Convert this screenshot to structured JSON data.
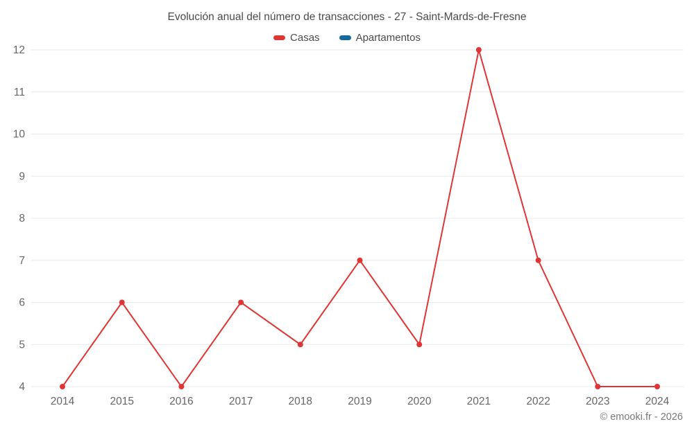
{
  "chart_data": {
    "type": "line",
    "title": "Evolución anual del número de transacciones - 27 - Saint-Mards-de-Fresne",
    "categories": [
      "2014",
      "2015",
      "2016",
      "2017",
      "2018",
      "2019",
      "2020",
      "2021",
      "2022",
      "2023",
      "2024"
    ],
    "series": [
      {
        "name": "Casas",
        "color": "#e03535",
        "values": [
          4,
          6,
          4,
          6,
          5,
          7,
          5,
          12,
          7,
          4,
          4
        ]
      },
      {
        "name": "Apartamentos",
        "color": "#15699c",
        "values": []
      }
    ],
    "ylim": [
      4,
      12
    ],
    "yticks": [
      4,
      5,
      6,
      7,
      8,
      9,
      10,
      11,
      12
    ],
    "grid": "horizontal",
    "gridline_color": "#e8e8e8",
    "tick_label_color": "#666666",
    "legend_position": "top"
  },
  "footer": {
    "copyright": "© emooki.fr - 2026"
  }
}
